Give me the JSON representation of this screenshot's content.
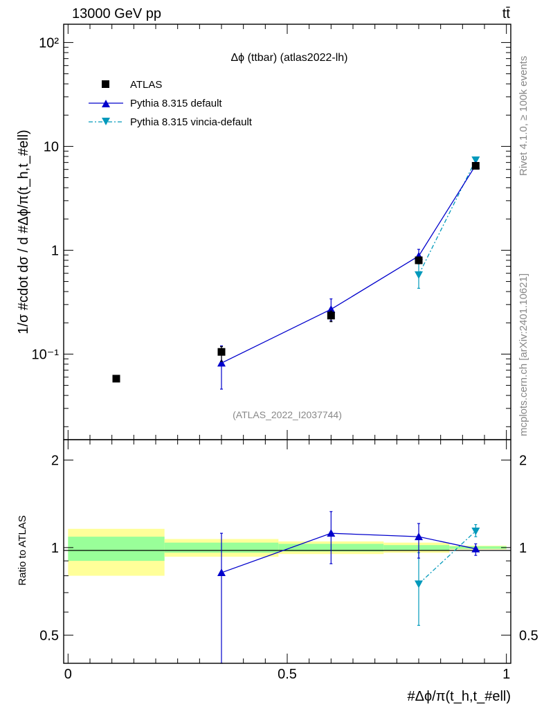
{
  "header": {
    "energy_label": "13000 GeV pp",
    "process_label": "tt̄"
  },
  "side_labels": {
    "rivet": "Rivet 4.1.0, ≥ 100k events",
    "mcplots": "mcplots.cern.ch [arXiv:2401.10621]"
  },
  "chart_data": [
    {
      "type": "line",
      "panel": "main",
      "title": "Δϕ (ttbar) (atlas2022-lh)",
      "watermark": "(ATLAS_2022_I2037744)",
      "ylabel": "1/σ #cdot dσ / d #Δϕ/π(t_h,t_#ell)",
      "yscale": "log",
      "xlim": [
        -0.01,
        1.01
      ],
      "ylim": [
        0.015,
        150
      ],
      "y_tick_labels": [
        "10⁻¹",
        "1",
        "10",
        "10²"
      ],
      "legend_position": "top-left",
      "series": [
        {
          "name": "ATLAS",
          "marker": "square",
          "color": "#000000",
          "x": [
            0.11,
            0.35,
            0.6,
            0.8,
            0.93
          ],
          "y": [
            0.058,
            0.105,
            0.235,
            0.8,
            6.5
          ],
          "yerr_low": [
            0.058,
            0.085,
            0.205,
            0.74,
            6.3
          ],
          "yerr_high": [
            0.058,
            0.118,
            0.26,
            0.84,
            6.7
          ]
        },
        {
          "name": "Pythia 8.315 default",
          "marker": "triangle-up",
          "color": "#0000cc",
          "x": [
            0.35,
            0.6,
            0.8,
            0.93
          ],
          "y": [
            0.082,
            0.27,
            0.88,
            6.6
          ],
          "yerr_low": [
            0.046,
            0.21,
            0.76,
            6.3
          ],
          "yerr_high": [
            0.12,
            0.34,
            1.02,
            6.9
          ]
        },
        {
          "name": "Pythia 8.315 vincia-default",
          "marker": "triangle-down",
          "color": "#0099bb",
          "x": [
            0.8,
            0.93
          ],
          "y": [
            0.58,
            7.4
          ],
          "yerr_low": [
            0.43,
            7.0
          ],
          "yerr_high": [
            0.78,
            7.8
          ]
        }
      ]
    },
    {
      "type": "line",
      "panel": "ratio",
      "ylabel": "Ratio to ATLAS",
      "xlabel": "#Δϕ/π(t_h,t_#ell)",
      "xlim": [
        -0.01,
        1.01
      ],
      "ylim": [
        0.4,
        2.35
      ],
      "x_tick_labels": [
        "0",
        "0.5",
        "1"
      ],
      "y_tick_labels": [
        "0.5",
        "1",
        "2"
      ],
      "bands": [
        {
          "x_low": 0.0,
          "x_high": 0.22,
          "yellow_low": 0.8,
          "yellow_high": 1.16,
          "green_low": 0.9,
          "green_high": 1.09
        },
        {
          "x_low": 0.22,
          "x_high": 0.48,
          "yellow_low": 0.93,
          "yellow_high": 1.07,
          "green_low": 0.96,
          "green_high": 1.04
        },
        {
          "x_low": 0.48,
          "x_high": 0.72,
          "yellow_low": 0.95,
          "yellow_high": 1.05,
          "green_low": 0.97,
          "green_high": 1.03
        },
        {
          "x_low": 0.72,
          "x_high": 0.87,
          "yellow_low": 0.96,
          "yellow_high": 1.04,
          "green_low": 0.98,
          "green_high": 1.02
        },
        {
          "x_low": 0.87,
          "x_high": 1.0,
          "yellow_low": 0.985,
          "yellow_high": 1.015,
          "green_low": 0.99,
          "green_high": 1.01
        }
      ],
      "series": [
        {
          "name": "Pythia 8.315 default",
          "marker": "triangle-up",
          "color": "#0000cc",
          "x": [
            0.35,
            0.6,
            0.8,
            0.93
          ],
          "y": [
            0.82,
            1.12,
            1.09,
            0.99
          ],
          "yerr_low": [
            0.4,
            0.88,
            0.92,
            0.94
          ],
          "yerr_high": [
            1.12,
            1.33,
            1.21,
            1.03
          ]
        },
        {
          "name": "Pythia 8.315 vincia-default",
          "marker": "triangle-down",
          "color": "#0099bb",
          "x": [
            0.8,
            0.93
          ],
          "y": [
            0.75,
            1.14
          ],
          "yerr_low": [
            0.54,
            1.09
          ],
          "yerr_high": [
            0.96,
            1.2
          ]
        }
      ]
    }
  ]
}
